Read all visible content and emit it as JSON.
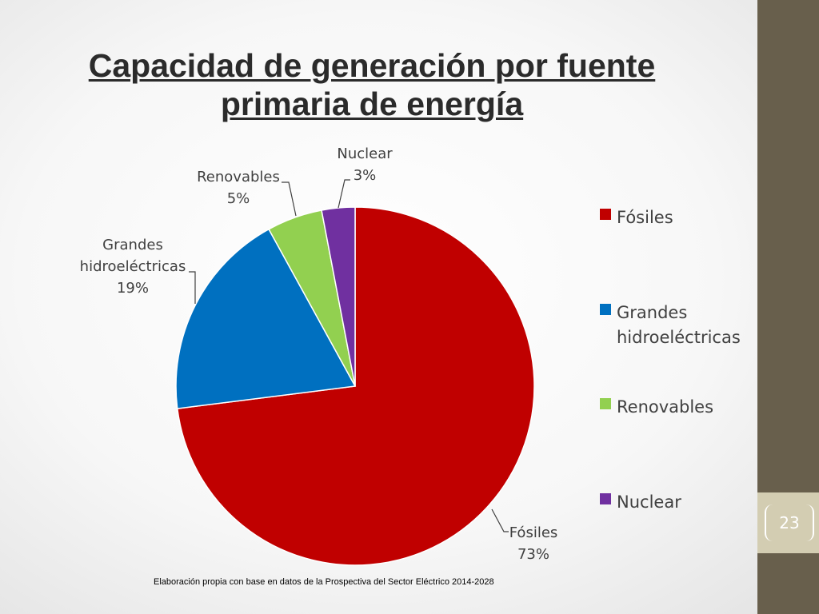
{
  "slide": {
    "title_line1": "Capacidad de generación por fuente",
    "title_line2": "primaria de energía",
    "page_number": "23",
    "source_note": "Elaboración propia con base en datos de la Prospectiva del Sector Eléctrico 2014-2028",
    "colors": {
      "sidebar": "#685f4c",
      "page_box": "#d3cdb2",
      "title": "#2b2b2b"
    }
  },
  "chart_data": {
    "type": "pie",
    "title": "",
    "categories": [
      "Fósiles",
      "Grandes hidroeléctricas",
      "Renovables",
      "Nuclear"
    ],
    "values": [
      73,
      19,
      5,
      3
    ],
    "data_labels": [
      {
        "lines": [
          "Fósiles",
          "73%"
        ]
      },
      {
        "lines": [
          "Grandes",
          "hidroeléctricas",
          "19%"
        ]
      },
      {
        "lines": [
          "Renovables",
          "5%"
        ]
      },
      {
        "lines": [
          "Nuclear",
          "3%"
        ]
      }
    ],
    "legend": {
      "position": "right",
      "entries": [
        {
          "lines": [
            "Fósiles"
          ]
        },
        {
          "lines": [
            "Grandes",
            "hidroeléctricas"
          ]
        },
        {
          "lines": [
            "Renovables"
          ]
        },
        {
          "lines": [
            "Nuclear"
          ]
        }
      ]
    },
    "colors": [
      "#c00000",
      "#0070c0",
      "#92d050",
      "#7030a0"
    ],
    "start_angle_deg": 0,
    "direction": "clockwise"
  }
}
